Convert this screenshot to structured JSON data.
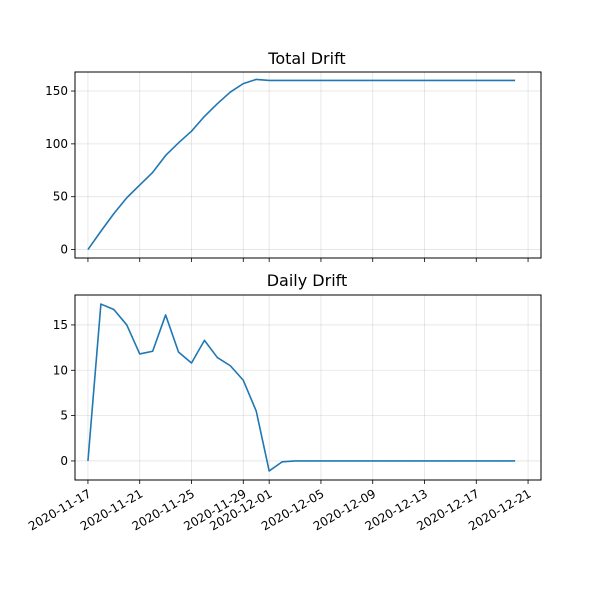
{
  "chart_data": [
    {
      "type": "line",
      "title": "Total Drift",
      "xlabel": "",
      "ylabel": "",
      "x_type": "date",
      "xlim": [
        "2020-11-16",
        "2020-12-22"
      ],
      "ylim": [
        -8,
        168
      ],
      "yticks": [
        0,
        50,
        100,
        150
      ],
      "grid": true,
      "x": [
        "2020-11-17",
        "2020-11-18",
        "2020-11-19",
        "2020-11-20",
        "2020-11-21",
        "2020-11-22",
        "2020-11-23",
        "2020-11-24",
        "2020-11-25",
        "2020-11-26",
        "2020-11-27",
        "2020-11-28",
        "2020-11-29",
        "2020-11-30",
        "2020-12-01",
        "2020-12-02",
        "2020-12-03",
        "2020-12-04",
        "2020-12-05",
        "2020-12-06",
        "2020-12-07",
        "2020-12-08",
        "2020-12-09",
        "2020-12-10",
        "2020-12-11",
        "2020-12-12",
        "2020-12-13",
        "2020-12-14",
        "2020-12-15",
        "2020-12-16",
        "2020-12-17",
        "2020-12-18",
        "2020-12-19",
        "2020-12-20"
      ],
      "series": [
        {
          "color": "#1f77b4",
          "values": [
            0,
            17.3,
            34,
            49,
            61,
            73,
            89,
            101,
            112,
            126,
            138,
            149,
            157,
            161,
            160,
            160,
            160,
            160,
            160,
            160,
            160,
            160,
            160,
            160,
            160,
            160,
            160,
            160,
            160,
            160,
            160,
            160,
            160,
            160
          ]
        }
      ]
    },
    {
      "type": "line",
      "title": "Daily Drift",
      "xlabel": "",
      "ylabel": "",
      "x_type": "date",
      "xlim": [
        "2020-11-16",
        "2020-12-22"
      ],
      "ylim": [
        -2.1,
        18.3
      ],
      "yticks": [
        0,
        5,
        10,
        15
      ],
      "xticks": [
        "2020-11-17",
        "2020-11-21",
        "2020-11-25",
        "2020-11-29",
        "2020-12-01",
        "2020-12-05",
        "2020-12-09",
        "2020-12-13",
        "2020-12-17",
        "2020-12-21"
      ],
      "grid": true,
      "x": [
        "2020-11-17",
        "2020-11-18",
        "2020-11-19",
        "2020-11-20",
        "2020-11-21",
        "2020-11-22",
        "2020-11-23",
        "2020-11-24",
        "2020-11-25",
        "2020-11-26",
        "2020-11-27",
        "2020-11-28",
        "2020-11-29",
        "2020-11-30",
        "2020-12-01",
        "2020-12-02",
        "2020-12-03",
        "2020-12-04",
        "2020-12-05",
        "2020-12-06",
        "2020-12-07",
        "2020-12-08",
        "2020-12-09",
        "2020-12-10",
        "2020-12-11",
        "2020-12-12",
        "2020-12-13",
        "2020-12-14",
        "2020-12-15",
        "2020-12-16",
        "2020-12-17",
        "2020-12-18",
        "2020-12-19",
        "2020-12-20"
      ],
      "series": [
        {
          "color": "#1f77b4",
          "values": [
            0,
            17.3,
            16.7,
            15.0,
            11.8,
            12.1,
            16.1,
            12.0,
            10.8,
            13.3,
            11.4,
            10.5,
            8.9,
            5.5,
            -1.1,
            -0.1,
            0,
            0,
            0,
            0,
            0,
            0,
            0,
            0,
            0,
            0,
            0,
            0,
            0,
            0,
            0,
            0,
            0,
            0
          ]
        }
      ]
    }
  ]
}
